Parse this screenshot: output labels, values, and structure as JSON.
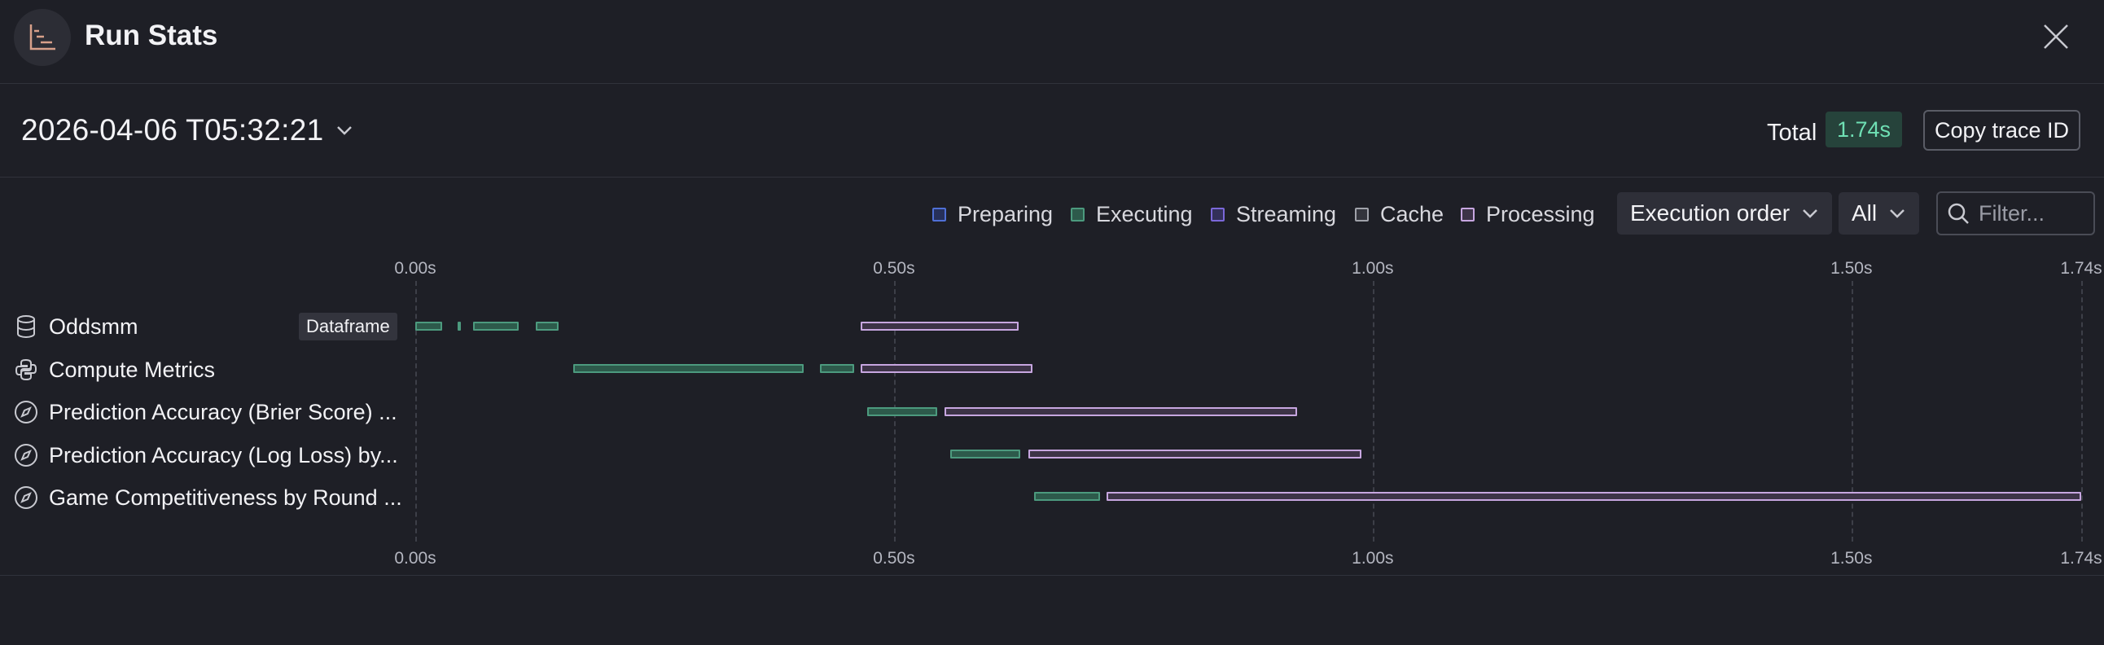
{
  "header": {
    "title": "Run Stats"
  },
  "subheader": {
    "date": "2026-04-06 T05:32:21",
    "total_label": "Total",
    "total_value": "1.74s",
    "copy_label": "Copy trace ID"
  },
  "legend": [
    {
      "label": "Preparing",
      "color": "#4f6fd6"
    },
    {
      "label": "Executing",
      "color": "#4c9a7e"
    },
    {
      "label": "Streaming",
      "color": "#7b68d9"
    },
    {
      "label": "Cache",
      "color": "#a0a2aa"
    },
    {
      "label": "Processing",
      "color": "#c7a6e0"
    }
  ],
  "controls": {
    "order_label": "Execution order",
    "scope_label": "All",
    "filter_placeholder": "Filter..."
  },
  "axis": {
    "ticks": [
      {
        "value": 0,
        "label": "0.00s"
      },
      {
        "value": 0.5,
        "label": "0.50s"
      },
      {
        "value": 1.0,
        "label": "1.00s"
      },
      {
        "value": 1.5,
        "label": "1.50s"
      },
      {
        "value": 1.74,
        "label": "1.74s"
      }
    ],
    "max": 1.74
  },
  "rows": [
    {
      "label": "Oddsmm",
      "icon": "database-icon",
      "tag": "Dataframe",
      "segments": [
        {
          "type": "executing",
          "start": 0.0,
          "end": 0.028
        },
        {
          "type": "executing",
          "start": 0.044,
          "end": 0.047
        },
        {
          "type": "executing",
          "start": 0.06,
          "end": 0.108
        },
        {
          "type": "executing",
          "start": 0.126,
          "end": 0.15
        },
        {
          "type": "processing",
          "start": 0.465,
          "end": 0.63
        }
      ]
    },
    {
      "label": "Compute Metrics",
      "icon": "python-icon",
      "segments": [
        {
          "type": "executing",
          "start": 0.165,
          "end": 0.406
        },
        {
          "type": "executing",
          "start": 0.423,
          "end": 0.458
        },
        {
          "type": "processing",
          "start": 0.465,
          "end": 0.645
        }
      ]
    },
    {
      "label": "Prediction Accuracy (Brier Score) ...",
      "icon": "compass-icon",
      "segments": [
        {
          "type": "executing",
          "start": 0.472,
          "end": 0.545
        },
        {
          "type": "processing",
          "start": 0.553,
          "end": 0.921
        }
      ]
    },
    {
      "label": "Prediction Accuracy (Log Loss) by...",
      "icon": "compass-icon",
      "segments": [
        {
          "type": "executing",
          "start": 0.559,
          "end": 0.632
        },
        {
          "type": "processing",
          "start": 0.64,
          "end": 0.988
        }
      ]
    },
    {
      "label": "Game Competitiveness by Round ...",
      "icon": "compass-icon",
      "segments": [
        {
          "type": "executing",
          "start": 0.646,
          "end": 0.715
        },
        {
          "type": "processing",
          "start": 0.722,
          "end": 1.74
        }
      ]
    }
  ]
}
